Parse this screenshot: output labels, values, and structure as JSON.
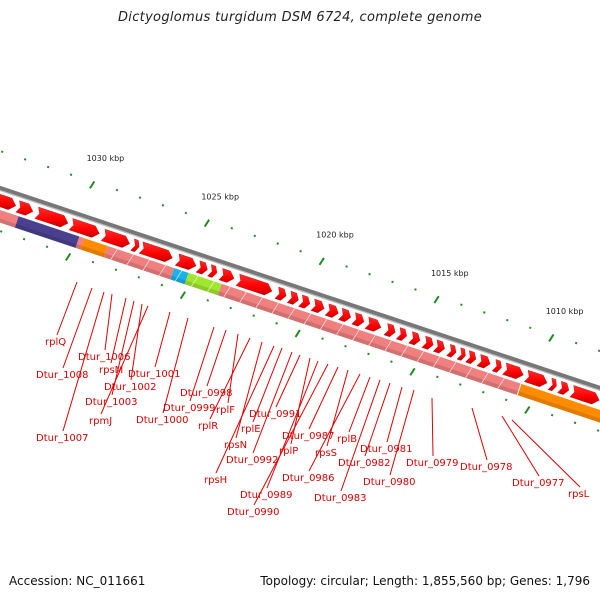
{
  "title": "Dictyoglomus turgidum DSM 6724, complete genome",
  "footer": {
    "accession": "Accession: NC_011661",
    "topology": "Topology: circular; Length: 1,855,560 bp; Genes: 1,796"
  },
  "colors": {
    "backbone": "#888888",
    "gene_arrow": "#ff0000",
    "cds_pink": "#f08080",
    "cds_purple": "#4b3f8f",
    "cds_orange": "#ff8c00",
    "cds_cyan": "#1ab2e8",
    "cds_green": "#a0e62d",
    "tick": "#228b22",
    "label": "#e00000"
  },
  "scale_labels": [
    "1030 kbp",
    "1025 kbp",
    "1020 kbp",
    "1015 kbp",
    "1010 kbp"
  ],
  "gene_labels": [
    "rplQ",
    "Dtur_1008",
    "Dtur_1006",
    "rpsM",
    "Dtur_1007",
    "Dtur_1003",
    "Dtur_1002",
    "rpmJ",
    "Dtur_1001",
    "Dtur_1000",
    "Dtur_0999",
    "Dtur_0998",
    "rplF",
    "rplR",
    "rpsN",
    "rpsH",
    "rplE",
    "Dtur_0992",
    "Dtur_0991",
    "rplP",
    "Dtur_0989",
    "Dtur_0990",
    "Dtur_0987",
    "rpsS",
    "Dtur_0986",
    "rplB",
    "Dtur_0983",
    "Dtur_0982",
    "Dtur_0981",
    "Dtur_0980",
    "Dtur_0979",
    "Dtur_0978",
    "Dtur_0977",
    "rpsL"
  ]
}
